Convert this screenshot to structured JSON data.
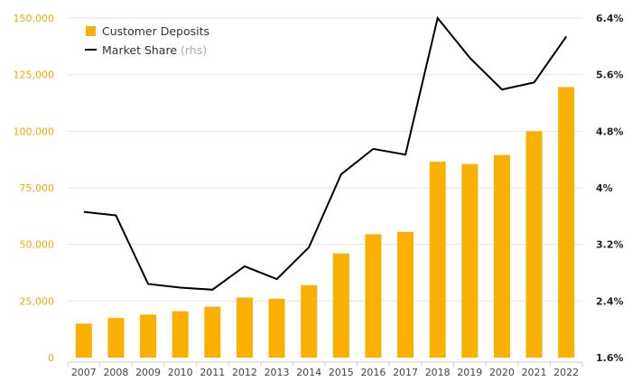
{
  "chart_data": {
    "type": "bar+line",
    "categories": [
      "2007",
      "2008",
      "2009",
      "2010",
      "2011",
      "2012",
      "2013",
      "2014",
      "2015",
      "2016",
      "2017",
      "2018",
      "2019",
      "2020",
      "2021",
      "2022"
    ],
    "series": [
      {
        "name": "Customer Deposits",
        "type": "bar",
        "axis": "left",
        "color": "#f9b000",
        "values": [
          15000,
          17500,
          19000,
          20500,
          22500,
          26500,
          26000,
          32000,
          46000,
          54500,
          55500,
          86500,
          85500,
          89500,
          100000,
          119500
        ]
      },
      {
        "name": "Market Share",
        "name_suffix": "(rhs)",
        "type": "line",
        "axis": "right",
        "color": "#000000",
        "values": [
          3.66,
          3.61,
          2.64,
          2.59,
          2.56,
          2.89,
          2.71,
          3.16,
          4.19,
          4.55,
          4.47,
          6.4,
          5.84,
          5.39,
          5.49,
          6.14
        ]
      }
    ],
    "y_left": {
      "ylim": [
        0,
        150000
      ],
      "ticks": [
        0,
        25000,
        50000,
        75000,
        100000,
        125000,
        150000
      ],
      "tick_labels": [
        "0",
        "25,000",
        "50,000",
        "75,000",
        "100,000",
        "125,000",
        "150,000"
      ],
      "color": "#f5a800"
    },
    "y_right": {
      "ylim": [
        1.6,
        6.4
      ],
      "ticks": [
        1.6,
        2.4,
        3.2,
        4.0,
        4.8,
        5.6,
        6.4
      ],
      "tick_labels": [
        "1.6%",
        "2.4%",
        "3.2%",
        "4%",
        "4.8%",
        "5.6%",
        "6.4%"
      ],
      "color": "#222222"
    },
    "grid": true,
    "legend_position": "top-left"
  }
}
